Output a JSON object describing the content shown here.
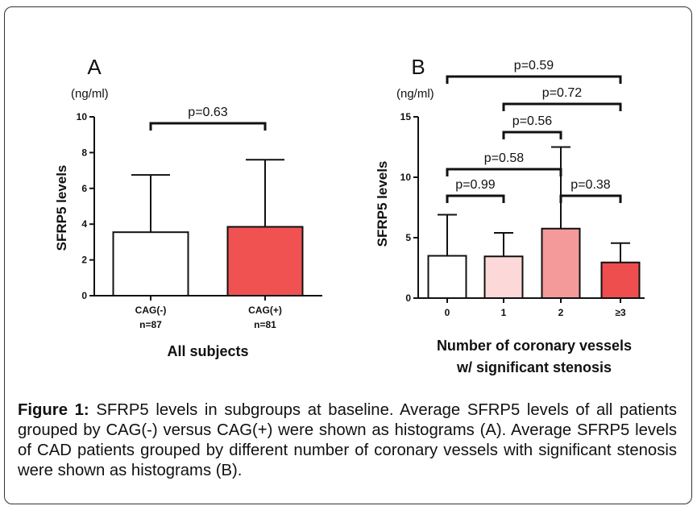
{
  "chart_data": [
    {
      "type": "bar",
      "panel_label": "A",
      "unit": "(ng/ml)",
      "ylabel": "SFRP5 levels",
      "xlabel": "All subjects",
      "ylim": [
        0,
        10
      ],
      "yticks": [
        "0",
        "2",
        "4",
        "6",
        "8",
        "10"
      ],
      "categories": [
        "CAG(-)",
        "CAG(+)"
      ],
      "category_notes": [
        "n=87",
        "n=81"
      ],
      "values": [
        3.55,
        3.85
      ],
      "errors": [
        3.2,
        3.75
      ],
      "bar_colors": [
        "#ffffff",
        "#f05252"
      ],
      "pvalues": [
        {
          "between": [
            0,
            1
          ],
          "label": "p=0.63"
        }
      ]
    },
    {
      "type": "bar",
      "panel_label": "B",
      "unit": "(ng/ml)",
      "ylabel": "SFRP5 levels",
      "xlabel": [
        "Number of coronary vessels",
        "w/ significant stenosis"
      ],
      "ylim": [
        0,
        15
      ],
      "yticks": [
        "0",
        "5",
        "10",
        "15"
      ],
      "categories": [
        "0",
        "1",
        "2",
        "≥3"
      ],
      "values": [
        3.5,
        3.45,
        5.75,
        2.95
      ],
      "errors": [
        3.4,
        1.95,
        6.75,
        1.6
      ],
      "bar_colors": [
        "#ffffff",
        "#fdd8d8",
        "#f49a9a",
        "#ef4e4e"
      ],
      "pvalues": [
        {
          "between": [
            0,
            3
          ],
          "label": "p=0.59"
        },
        {
          "between": [
            1,
            3
          ],
          "label": "p=0.72"
        },
        {
          "between": [
            1,
            2
          ],
          "label": "p=0.56"
        },
        {
          "between": [
            0,
            2
          ],
          "label": "p=0.58"
        },
        {
          "between": [
            0,
            1
          ],
          "label": "p=0.99"
        },
        {
          "between": [
            2,
            3
          ],
          "label": "p=0.38"
        }
      ]
    }
  ],
  "caption": {
    "label": "Figure 1:",
    "text": " SFRP5 levels in subgroups at baseline. Average SFRP5 levels of all patients grouped by CAG(-) versus CAG(+) were shown as histograms (A). Average SFRP5 levels of CAD patients grouped by different number of coronary vessels with significant stenosis were shown as histograms (B)."
  }
}
